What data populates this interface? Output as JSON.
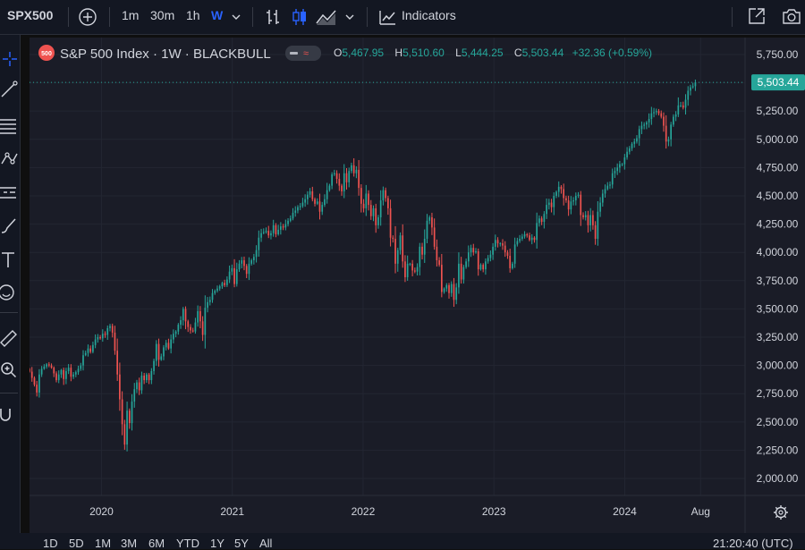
{
  "toolbar": {
    "symbol": "SPX500",
    "intervals": [
      "1m",
      "30m",
      "1h",
      "W"
    ],
    "indicators_label": "Indicators"
  },
  "legend": {
    "badge": "500",
    "title": "S&P 500 Index · 1W · BLACKBULL",
    "o_label": "O",
    "o_value": "5,467.95",
    "h_label": "H",
    "h_value": "5,510.60",
    "l_label": "L",
    "l_value": "5,444.25",
    "c_label": "C",
    "c_value": "5,503.44",
    "change": "+32.36 (+0.59%)"
  },
  "bottom": {
    "ranges": [
      "1D",
      "5D",
      "1M",
      "3M",
      "6M",
      "YTD",
      "1Y",
      "5Y",
      "All"
    ],
    "clock": "21:20:40 (UTC)"
  },
  "colors": {
    "up": "#26a69a",
    "down": "#ef5350",
    "background": "#1a1c27",
    "accent": "#2962ff"
  },
  "chart_data": {
    "type": "candlestick",
    "title": "S&P 500 Index · 1W · BLACKBULL",
    "x_start": 2019.45,
    "x_end": 2024.54,
    "x_axis_max": 2024.92,
    "ylim": [
      1850,
      5900
    ],
    "y_ticks": [
      2000,
      2250,
      2500,
      2750,
      3000,
      3250,
      3500,
      3750,
      4000,
      4250,
      4500,
      4750,
      5000,
      5250,
      5500,
      5750
    ],
    "y_tick_labels": [
      "2,000.00",
      "2,250.00",
      "2,500.00",
      "2,750.00",
      "3,000.00",
      "3,250.00",
      "3,500.00",
      "3,750.00",
      "4,000.00",
      "4,250.00",
      "4,500.00",
      "4,750.00",
      "5,000.00",
      "5,250.00",
      "5,500.00",
      "5,750.00"
    ],
    "x_ticks": [
      2020.0,
      2021.0,
      2022.0,
      2023.0,
      2024.0,
      2024.58
    ],
    "x_tick_labels": [
      "2020",
      "2021",
      "2022",
      "2023",
      "2024",
      "Aug"
    ],
    "last_price": 5503.44,
    "last_price_label": "5,503.44",
    "closes": [
      2945,
      2890,
      2830,
      2760,
      2920,
      2970,
      2990,
      3010,
      3000,
      2980,
      2930,
      2870,
      2920,
      2960,
      2880,
      2950,
      2980,
      2900,
      2920,
      2940,
      2970,
      3000,
      3090,
      3110,
      3150,
      3120,
      3180,
      3230,
      3250,
      3240,
      3280,
      3270,
      3330,
      3350,
      3290,
      3130,
      2920,
      2700,
      2480,
      2300,
      2600,
      2490,
      2680,
      2790,
      2850,
      2780,
      2910,
      2870,
      2920,
      2870,
      2950,
      3040,
      3190,
      3050,
      3080,
      3160,
      3200,
      3150,
      3230,
      3280,
      3300,
      3360,
      3400,
      3500,
      3390,
      3340,
      3310,
      3300,
      3380,
      3480,
      3390,
      3270,
      3510,
      3560,
      3580,
      3640,
      3660,
      3680,
      3700,
      3730,
      3710,
      3760,
      3830,
      3860,
      3720,
      3850,
      3900,
      3930,
      3880,
      3810,
      3900,
      3930,
      3960,
      4020,
      4130,
      4170,
      4180,
      4190,
      4150,
      4170,
      4240,
      4160,
      4200,
      4230,
      4220,
      4250,
      4280,
      4300,
      4350,
      4370,
      4400,
      4410,
      4440,
      4470,
      4510,
      4540,
      4470,
      4430,
      4450,
      4360,
      4420,
      4470,
      4550,
      4590,
      4690,
      4700,
      4650,
      4590,
      4540,
      4700,
      4620,
      4720,
      4770,
      4700,
      4730,
      4570,
      4430,
      4390,
      4520,
      4420,
      4320,
      4390,
      4240,
      4310,
      4460,
      4550,
      4480,
      4390,
      4130,
      4120,
      3900,
      4020,
      4150,
      3920,
      3780,
      3900,
      3900,
      3840,
      3830,
      3870,
      4050,
      3980,
      4120,
      4280,
      4310,
      4220,
      4050,
      3930,
      3890,
      3650,
      3680,
      3710,
      3640,
      3720,
      3580,
      3690,
      3900,
      3760,
      3870,
      3920,
      4000,
      4040,
      4000,
      4010,
      3850,
      3890,
      3850,
      3920,
      3950,
      3980,
      4050,
      4110,
      4080,
      4080,
      4060,
      4000,
      3970,
      3860,
      3900,
      4070,
      4100,
      4120,
      4140,
      4160,
      4150,
      4110,
      4130,
      4110,
      4260,
      4300,
      4270,
      4340,
      4420,
      4440,
      4400,
      4500,
      4535,
      4580,
      4560,
      4480,
      4460,
      4380,
      4450,
      4460,
      4500,
      4510,
      4330,
      4310,
      4330,
      4240,
      4330,
      4240,
      4120,
      4360,
      4440,
      4520,
      4560,
      4590,
      4600,
      4700,
      4720,
      4750,
      4780,
      4780,
      4840,
      4890,
      4920,
      4960,
      4980,
      5010,
      5090,
      5120,
      5130,
      5150,
      5180,
      5230,
      5240,
      5250,
      5230,
      5200,
      5120,
      4980,
      5000,
      5130,
      5200,
      5220,
      5300,
      5300,
      5280,
      5350,
      5430,
      5460,
      5470,
      5503.44
    ]
  }
}
